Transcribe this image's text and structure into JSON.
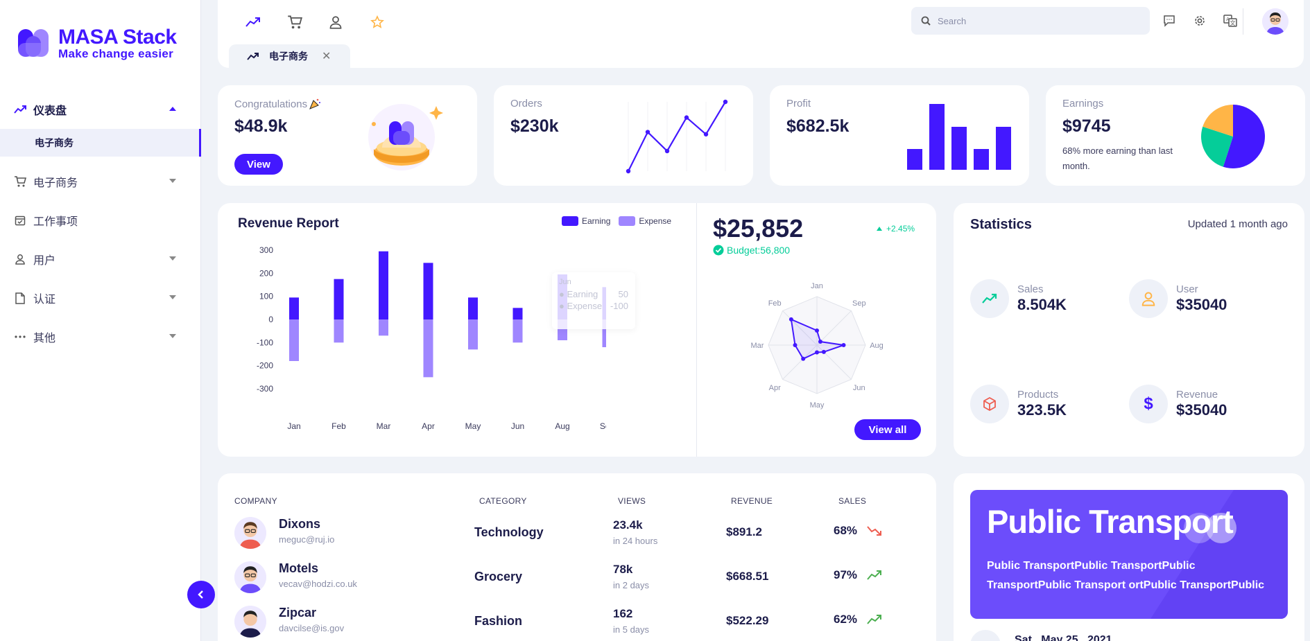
{
  "brand": {
    "title": "MASA Stack",
    "subtitle": "Make change easier"
  },
  "nav": {
    "items": [
      {
        "label": "仪表盘",
        "icon": "trending-icon",
        "open": true
      },
      {
        "label": "电子商务",
        "icon": "cart-icon"
      },
      {
        "label": "工作事项",
        "icon": "calendar-check-icon"
      },
      {
        "label": "用户",
        "icon": "user-icon"
      },
      {
        "label": "认证",
        "icon": "document-icon"
      },
      {
        "label": "其他",
        "icon": "more-dots-icon"
      }
    ],
    "sub_item": "电子商务"
  },
  "header": {
    "search_placeholder": "Search",
    "tab_label": "电子商务",
    "tab_close": "✕"
  },
  "cards": {
    "congrats": {
      "label": "Congratulations",
      "value": "$48.9k",
      "button": "View"
    },
    "orders": {
      "label": "Orders",
      "value": "$230k",
      "spark": [
        0,
        35,
        18,
        48,
        33,
        62
      ]
    },
    "profit": {
      "label": "Profit",
      "value": "$682.5k",
      "bars": [
        30,
        95,
        62,
        30,
        62
      ]
    },
    "earnings": {
      "label": "Earnings",
      "value": "$9745",
      "note": "68% more earning than last month.",
      "pie": [
        55,
        25,
        20
      ],
      "pie_colors": [
        "#4318ff",
        "#05cd99",
        "#ffb547"
      ]
    }
  },
  "revenue": {
    "title": "Revenue Report",
    "legend": [
      {
        "label": "Earning",
        "color": "#4318ff"
      },
      {
        "label": "Expense",
        "color": "#9f86ff"
      }
    ],
    "total": "$25,852",
    "change": "+2.45%",
    "budget": "Budget:56,800",
    "button": "View all",
    "tooltip": {
      "month": "Jun",
      "earning_label": "Earning",
      "earning_value": "50",
      "expense_label": "Expense",
      "expense_value": "-100"
    }
  },
  "chart_data": [
    {
      "type": "bar",
      "categories": [
        "Jan",
        "Feb",
        "Mar",
        "Apr",
        "May",
        "Jun",
        "Aug",
        "Sep"
      ],
      "series": [
        {
          "name": "Earning",
          "values": [
            95,
            175,
            295,
            245,
            95,
            50,
            195,
            140
          ]
        },
        {
          "name": "Expense",
          "values": [
            -180,
            -100,
            -70,
            -250,
            -130,
            -100,
            -90,
            -120
          ]
        }
      ],
      "yticks": [
        "300",
        "200",
        "100",
        "0",
        "-100",
        "-200",
        "-300"
      ],
      "ylim": [
        -300,
        300
      ]
    },
    {
      "type": "radar",
      "axes": [
        "Jan",
        "Sep",
        "Aug",
        "Jun",
        "May",
        "Apr",
        "Mar",
        "Feb"
      ],
      "values": [
        0.3,
        0.1,
        0.55,
        0.2,
        0.15,
        0.4,
        0.45,
        0.75
      ],
      "ylim": [
        0,
        1
      ]
    }
  ],
  "statistics": {
    "title": "Statistics",
    "updated": "Updated 1 month ago",
    "items": [
      {
        "label": "Sales",
        "value": "8.504K",
        "icon": "trending-up-icon",
        "color": "#05cd99"
      },
      {
        "label": "User",
        "value": "$35040",
        "icon": "user-icon",
        "color": "#ffb547"
      },
      {
        "label": "Products",
        "value": "323.5K",
        "icon": "box-icon",
        "color": "#ee5d50"
      },
      {
        "label": "Revenue",
        "value": "$35040",
        "icon": "dollar-icon",
        "color": "#4318ff"
      }
    ]
  },
  "table": {
    "headers": [
      "COMPANY",
      "CATEGORY",
      "VIEWS",
      "REVENUE",
      "SALES"
    ],
    "rows": [
      {
        "name": "Dixons",
        "email": "meguc@ruj.io",
        "category": "Technology",
        "views": "23.4k",
        "views_time": "in 24 hours",
        "revenue": "$891.2",
        "sales": "68%",
        "trend": "down"
      },
      {
        "name": "Motels",
        "email": "vecav@hodzi.co.uk",
        "category": "Grocery",
        "views": "78k",
        "views_time": "in 2 days",
        "revenue": "$668.51",
        "sales": "97%",
        "trend": "up"
      },
      {
        "name": "Zipcar",
        "email": "davcilse@is.gov",
        "category": "Fashion",
        "views": "162",
        "views_time": "in 5 days",
        "revenue": "$522.29",
        "sales": "62%",
        "trend": "up"
      }
    ]
  },
  "banner": {
    "title": "Public Transport",
    "text": "Public TransportPublic TransportPublic TransportPublic Transport ortPublic TransportPublic",
    "date": "Sat , May 25 , 2021"
  }
}
